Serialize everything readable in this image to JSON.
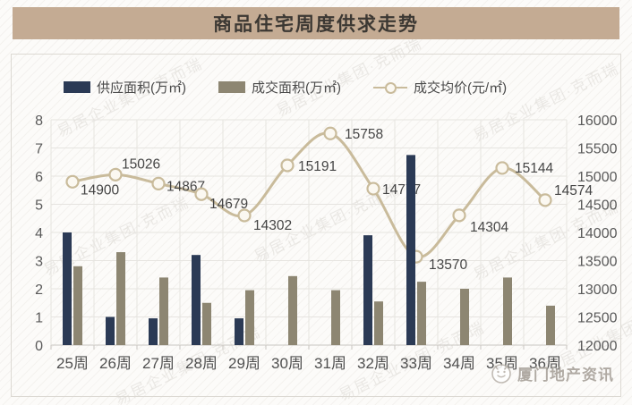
{
  "title": "商品住宅周度供求走势",
  "brand": {
    "label": "厦门地产资讯",
    "icon": "smiley-logo"
  },
  "watermark_text": "易居企业集团·克而瑞",
  "colors": {
    "title_bar_bg": "#c4ab93",
    "title_text": "#3c3833",
    "supply_bar": "#2b3a55",
    "deal_bar": "#8d8672",
    "price_line": "#c9bb9b",
    "marker_fill": "#fbf8f1",
    "grid": "#e6e4e0",
    "axis_line": "#c9c6c1",
    "axis_text": "#595959",
    "data_label_text": "#454545"
  },
  "chart_data": {
    "type": "bar",
    "subtype": "dual-axis bar+line combo",
    "title": "商品住宅周度供求走势",
    "categories": [
      "25周",
      "26周",
      "27周",
      "28周",
      "29周",
      "30周",
      "31周",
      "32周",
      "33周",
      "34周",
      "35周",
      "36周"
    ],
    "series": [
      {
        "name": "供应面积(万㎡)",
        "kind": "bar",
        "axis": "left",
        "color": "#2b3a55",
        "values": [
          4.0,
          1.0,
          0.95,
          3.2,
          0.95,
          0,
          0,
          3.9,
          6.75,
          0,
          0,
          0
        ]
      },
      {
        "name": "成交面积(万㎡)",
        "kind": "bar",
        "axis": "left",
        "color": "#8d8672",
        "values": [
          2.8,
          3.3,
          2.4,
          1.5,
          1.95,
          2.45,
          1.95,
          1.55,
          2.25,
          2.0,
          2.4,
          1.4
        ]
      },
      {
        "name": "成交均价(元/㎡)",
        "kind": "line",
        "axis": "right",
        "color": "#c9bb9b",
        "values": [
          14900,
          15026,
          14867,
          14679,
          14302,
          15191,
          15758,
          14777,
          13570,
          14304,
          15144,
          14574
        ],
        "labels": [
          "14900",
          "15026",
          "14867",
          "14679",
          "14302",
          "15191",
          "15758",
          "14777",
          "13570",
          "14304",
          "15144",
          "14574"
        ]
      }
    ],
    "left_axis": {
      "min": 0,
      "max": 8,
      "step": 1,
      "ticks": [
        "0",
        "1",
        "2",
        "3",
        "4",
        "5",
        "6",
        "7",
        "8"
      ]
    },
    "right_axis": {
      "min": 12000,
      "max": 16000,
      "step": 500,
      "ticks": [
        "12000",
        "12500",
        "13000",
        "13500",
        "14000",
        "14500",
        "15000",
        "15500",
        "16000"
      ]
    },
    "grid": true,
    "legend_position": "top"
  }
}
